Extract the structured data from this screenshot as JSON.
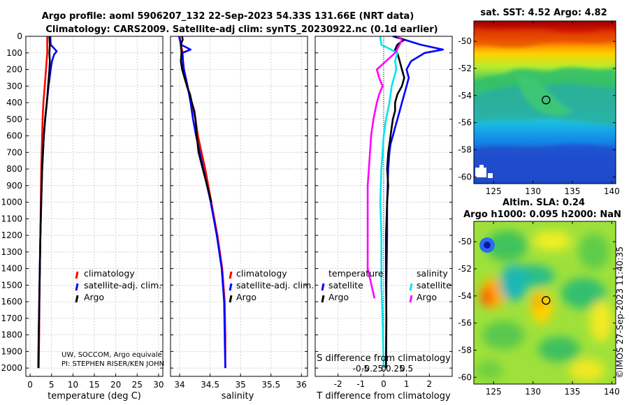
{
  "figure": {
    "title_line1": "Argo profile: aoml 5906207_132 22-Sep-2023 54.33S 131.66E (NRT data)",
    "title_line2": "Climatology: CARS2009. Satellite-adj clim: synTS_20230922.nc (0.1d earlier)",
    "credit_line1": "UW, SOCCOM, Argo equivale",
    "credit_line2": "PI: STEPHEN RISER/KEN JOHN",
    "watermark": "©IMOS 27-Sep-2023 11:40:35"
  },
  "colors": {
    "climatology": "#ff0000",
    "satellite": "#0000ff",
    "argo": "#000000",
    "sat_S": "#00e5ee",
    "argo_S": "#ff00ff"
  },
  "chart_data": [
    {
      "id": "temperature",
      "type": "line",
      "xlabel": "temperature (deg C)",
      "xlim": [
        -1,
        31
      ],
      "ylim": [
        2050,
        0
      ],
      "xticks": [
        0,
        5,
        10,
        15,
        20,
        25,
        30
      ],
      "xtick_labels": [
        "0",
        "5",
        "10",
        "15",
        "20",
        "25",
        "30"
      ],
      "yticks": [
        0,
        100,
        200,
        300,
        400,
        500,
        600,
        700,
        800,
        900,
        1000,
        1100,
        1200,
        1300,
        1400,
        1500,
        1600,
        1700,
        1800,
        1900,
        2000
      ],
      "ytick_labels": [
        "0",
        "100",
        "200",
        "300",
        "400",
        "500",
        "600",
        "700",
        "800",
        "900",
        "1000",
        "1100",
        "1200",
        "1300",
        "1400",
        "1500",
        "1600",
        "1700",
        "1800",
        "1900",
        "2000"
      ],
      "legend": [
        "climatology",
        "satellite-adj. clim.",
        "Argo"
      ],
      "series": [
        {
          "name": "climatology",
          "color": "#ff0000",
          "depth": [
            0,
            50,
            100,
            200,
            300,
            400,
            500,
            600,
            800,
            1000,
            1200,
            1500,
            1800,
            2000
          ],
          "values": [
            4.0,
            4.0,
            4.0,
            3.7,
            3.4,
            3.1,
            2.9,
            2.8,
            2.6,
            2.5,
            2.4,
            2.2,
            2.1,
            2.0
          ]
        },
        {
          "name": "satellite-adj. clim.",
          "color": "#0000ff",
          "depth": [
            0,
            50,
            70,
            90,
            110,
            150,
            200,
            300,
            400,
            500,
            600,
            800,
            1000,
            1200,
            1500,
            1800,
            2000
          ],
          "values": [
            4.7,
            4.8,
            5.5,
            6.2,
            5.6,
            5.1,
            4.8,
            4.3,
            3.9,
            3.5,
            3.2,
            2.8,
            2.6,
            2.4,
            2.2,
            2.0,
            1.9
          ]
        },
        {
          "name": "Argo",
          "color": "#000000",
          "depth": [
            0,
            50,
            100,
            150,
            200,
            300,
            400,
            500,
            600,
            800,
            1000,
            1200,
            1500,
            1800,
            2000
          ],
          "values": [
            4.5,
            4.6,
            4.5,
            4.6,
            4.5,
            4.2,
            3.9,
            3.5,
            3.2,
            2.8,
            2.6,
            2.4,
            2.2,
            2.0,
            1.9
          ]
        }
      ]
    },
    {
      "id": "salinity",
      "type": "line",
      "xlabel": "salinity",
      "xlim": [
        33.85,
        36.1
      ],
      "ylim": [
        2050,
        0
      ],
      "xticks": [
        34,
        34.5,
        35,
        35.5,
        36
      ],
      "xtick_labels": [
        "34",
        "34.5",
        "35",
        "35.5",
        "36"
      ],
      "legend": [
        "climatology",
        "satellite-adj. clim.",
        "Argo"
      ],
      "series": [
        {
          "name": "climatology",
          "color": "#ff0000",
          "depth": [
            0,
            50,
            100,
            200,
            300,
            400,
            500,
            600,
            700,
            800,
            900,
            1000,
            1200,
            1400,
            1600,
            1800,
            2000
          ],
          "values": [
            34.0,
            34.02,
            34.05,
            34.06,
            34.12,
            34.2,
            34.26,
            34.3,
            34.36,
            34.42,
            34.47,
            34.52,
            34.62,
            34.7,
            34.74,
            34.75,
            34.75
          ]
        },
        {
          "name": "satellite-adj. clim.",
          "color": "#0000ff",
          "depth": [
            0,
            50,
            80,
            100,
            200,
            300,
            400,
            500,
            600,
            700,
            800,
            900,
            1000,
            1200,
            1400,
            1600,
            1800,
            2000
          ],
          "values": [
            33.99,
            34.02,
            34.18,
            34.04,
            34.07,
            34.13,
            34.18,
            34.22,
            34.27,
            34.33,
            34.39,
            34.45,
            34.51,
            34.61,
            34.69,
            34.73,
            34.74,
            34.75
          ]
        },
        {
          "name": "Argo",
          "color": "#000000",
          "depth": [
            0,
            20,
            50,
            100,
            150,
            200,
            250,
            300,
            350,
            400,
            450,
            500,
            550,
            600,
            700,
            800,
            900,
            1000
          ],
          "values": [
            34.04,
            34.05,
            34.02,
            34.03,
            34.02,
            34.04,
            34.08,
            34.12,
            34.17,
            34.2,
            34.24,
            34.26,
            34.27,
            34.28,
            34.31,
            34.38,
            34.45,
            34.52
          ]
        }
      ]
    },
    {
      "id": "difference",
      "type": "line",
      "xlabel": "T difference from climatology",
      "xlabel2": "S difference from climatology",
      "xlim": [
        -3,
        3
      ],
      "ylim": [
        2050,
        0
      ],
      "xticks": [
        -2,
        -1,
        0,
        1,
        2
      ],
      "xtick_labels": [
        "-2",
        "-1",
        "0",
        "1",
        "2"
      ],
      "xticks2": [
        -1,
        -0.5,
        0,
        0.5,
        1
      ],
      "xtick2_labels": [
        "-0.5",
        "-0.25",
        "0",
        "0.25",
        "0.5"
      ],
      "legend_titles": [
        "temperature",
        "salinity"
      ],
      "legend": [
        "satellite",
        "Argo",
        "satellite",
        "Argo"
      ],
      "series": [
        {
          "name": "T satellite",
          "color": "#0000ff",
          "depth": [
            0,
            20,
            50,
            80,
            100,
            150,
            200,
            250,
            300,
            350,
            400,
            450,
            500,
            550,
            600,
            650,
            700,
            800,
            1000,
            1200,
            1500,
            2000
          ],
          "values": [
            0.4,
            0.9,
            1.6,
            2.6,
            1.8,
            1.2,
            1.0,
            1.1,
            1.0,
            0.9,
            0.8,
            0.7,
            0.6,
            0.5,
            0.4,
            0.3,
            0.25,
            0.2,
            0.15,
            0.15,
            0.12,
            0.1
          ]
        },
        {
          "name": "T Argo",
          "color": "#000000",
          "depth": [
            0,
            20,
            50,
            80,
            100,
            150,
            200,
            250,
            300,
            350,
            400,
            450,
            500,
            550,
            600,
            650,
            700,
            800,
            900,
            1000,
            1200,
            1500,
            1700,
            2000
          ],
          "values": [
            0.5,
            0.9,
            0.6,
            0.5,
            0.6,
            0.7,
            0.8,
            0.9,
            0.8,
            0.6,
            0.5,
            0.5,
            0.4,
            0.35,
            0.3,
            0.25,
            0.2,
            0.15,
            0.2,
            0.15,
            0.1,
            0.1,
            0.12,
            0.1
          ]
        },
        {
          "name": "S satellite",
          "color": "#00e5ee",
          "depth": [
            0,
            50,
            100,
            150,
            200,
            300,
            400,
            500,
            600,
            800,
            1000,
            1200,
            1500,
            1700,
            2000
          ],
          "values": [
            -0.15,
            -0.1,
            0.6,
            0.5,
            0.55,
            0.35,
            0.25,
            0.1,
            0.0,
            -0.1,
            -0.15,
            -0.1,
            -0.1,
            -0.05,
            0.0
          ]
        },
        {
          "name": "S Argo",
          "color": "#ff00ff",
          "depth": [
            0,
            20,
            50,
            100,
            150,
            200,
            250,
            300,
            350,
            400,
            500,
            600,
            700,
            800,
            900,
            1000,
            1200,
            1400,
            1580
          ],
          "values": [
            0.6,
            0.8,
            0.7,
            0.5,
            0.1,
            -0.3,
            -0.2,
            -0.05,
            -0.2,
            -0.3,
            -0.45,
            -0.55,
            -0.6,
            -0.65,
            -0.7,
            -0.7,
            -0.7,
            -0.7,
            -0.4
          ]
        }
      ]
    },
    {
      "id": "sst_map",
      "type": "heatmap",
      "title": "sat. SST: 4.52 Argo: 4.82",
      "xlim": [
        122.5,
        140.5
      ],
      "ylim": [
        -60.5,
        -48.5
      ],
      "xticks": [
        125,
        130,
        135,
        140
      ],
      "xtick_labels": [
        "125",
        "130",
        "135",
        "140"
      ],
      "yticks": [
        -50,
        -52,
        -54,
        -56,
        -58,
        -60
      ],
      "ytick_labels": [
        "-50",
        "-52",
        "-54",
        "-56",
        "-58",
        "-60"
      ],
      "marker": {
        "lon": 131.66,
        "lat": -54.33
      }
    },
    {
      "id": "sla_map",
      "type": "heatmap",
      "title": "Altim. SLA: 0.24",
      "subtitle": "Argo h1000: 0.095 h2000: NaN",
      "xlim": [
        122.5,
        140.5
      ],
      "ylim": [
        -60.5,
        -48.5
      ],
      "xticks": [
        125,
        130,
        135,
        140
      ],
      "xtick_labels": [
        "125",
        "130",
        "135",
        "140"
      ],
      "yticks": [
        -50,
        -52,
        -54,
        -56,
        -58,
        -60
      ],
      "ytick_labels": [
        "-50",
        "-52",
        "-54",
        "-56",
        "-58",
        "-60"
      ],
      "marker": {
        "lon": 131.66,
        "lat": -54.33
      }
    }
  ]
}
